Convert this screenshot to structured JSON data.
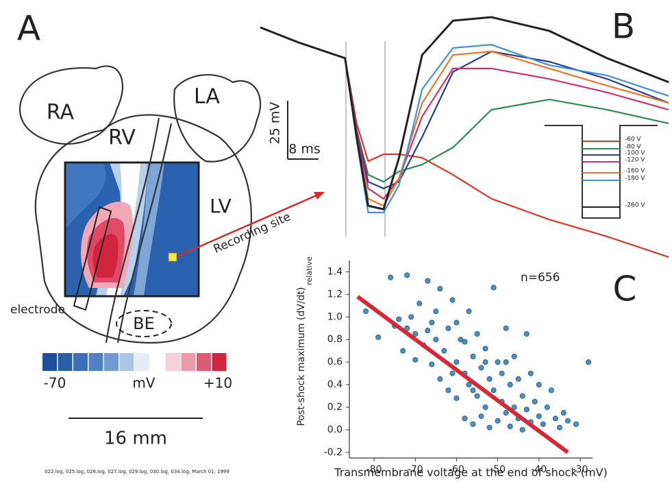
{
  "panel_labels": [
    "A",
    "B",
    "C"
  ],
  "panel_a": {
    "regions": [
      "RA",
      "RV",
      "LA",
      "LV",
      "BE"
    ],
    "electrode_label": "electrode",
    "recording_label": "Recording site",
    "colorbar": {
      "colors": [
        "#1d4f9e",
        "#2a5ea9",
        "#3a6fb7",
        "#4f82c4",
        "#6f9bd1",
        "#a9c6e6",
        "#e4edf7",
        "#ffffff",
        "#f5d0d8",
        "#ec9aab",
        "#de5a74",
        "#d1253f"
      ],
      "min_label": "-70",
      "unit": "mV",
      "max_label": "+10"
    },
    "scale_label": "16 mm",
    "footer": "022.log, 025.log, 026.log, 027.log, 029.log, 030.log, 034.log, March 01, 1999"
  },
  "chart_data": [
    {
      "type": "line",
      "x": [
        0,
        10,
        22,
        25,
        28,
        32,
        36,
        42,
        50,
        60,
        75,
        90,
        106
      ],
      "series": [
        {
          "name": "-60 V",
          "color": "#e03424",
          "values": [
            0,
            -6.5,
            -13.2,
            -41.2,
            -57.4,
            -54.4,
            -54.4,
            -55.9,
            -63.2,
            -73.5,
            -82.4,
            -89.7,
            -98.5
          ]
        },
        {
          "name": "-80 V",
          "color": "#2a8a50",
          "values": [
            0,
            -6.5,
            -13.2,
            -44,
            -63.2,
            -66.2,
            -61.8,
            -58.8,
            -51.5,
            -35.3,
            -30.9,
            -35.3,
            -41.2
          ]
        },
        {
          "name": "-100 V",
          "color": "#2c3c8c",
          "values": [
            0,
            -6.5,
            -13.2,
            -44,
            -66.2,
            -69.1,
            -66.2,
            -47,
            -19.1,
            -10.3,
            -14.7,
            -22.1,
            -32.4
          ]
        },
        {
          "name": "-120 V",
          "color": "#d2306c",
          "values": [
            0,
            -6.5,
            -13.2,
            -45,
            -69.1,
            -73.5,
            -64.7,
            -38.2,
            -17.6,
            -17.6,
            -22.1,
            -27.9,
            -35.3
          ]
        },
        {
          "name": "-160 V",
          "color": "#f07424",
          "values": [
            0,
            -6.5,
            -13.2,
            -47,
            -73.5,
            -76.5,
            -64.7,
            -32.4,
            -11.8,
            -10.3,
            -17.6,
            -25,
            -32.4
          ]
        },
        {
          "name": "-180 V",
          "color": "#3c92da",
          "values": [
            0,
            -6.5,
            -13.2,
            -48.5,
            -79.4,
            -79.4,
            -67.6,
            -26.5,
            -8.8,
            -7.4,
            -16.2,
            -20.6,
            -29.4
          ]
        },
        {
          "name": "-260 V",
          "color": "#222222",
          "values": [
            0,
            -6.5,
            -13.2,
            -47,
            -76.5,
            -78,
            -55.9,
            -11.8,
            2.9,
            4.4,
            -1.5,
            -13.2,
            -23.5
          ]
        }
      ],
      "scale_bars": {
        "voltage": {
          "value": 25,
          "label": "25 mV"
        },
        "time": {
          "value": 8,
          "label": "8 ms"
        }
      }
    },
    {
      "type": "scatter",
      "xlabel": "Transmembrane voltage at the end of shock (mV)",
      "ylabel": "Post-shock maximum (dV/dt)",
      "ylabel_subscript": "relative",
      "annotation": "n=656",
      "color": "#4a90c0",
      "x": [
        -82,
        -79,
        -76,
        -75,
        -74,
        -73,
        -72,
        -71,
        -70,
        -70,
        -69,
        -68,
        -67,
        -66,
        -66,
        -65,
        -64,
        -64,
        -63,
        -62,
        -62,
        -61,
        -60,
        -60,
        -59,
        -58,
        -58,
        -57,
        -57,
        -56,
        -56,
        -55,
        -55,
        -54,
        -54,
        -53,
        -53,
        -52,
        -52,
        -51,
        -51,
        -50,
        -50,
        -49,
        -49,
        -48,
        -48,
        -47,
        -47,
        -46,
        -46,
        -45,
        -45,
        -44,
        -44,
        -43,
        -43,
        -42,
        -42,
        -41,
        -40,
        -40,
        -39,
        -38,
        -37,
        -36,
        -35,
        -34,
        -33,
        -31,
        -28,
        -60,
        -65,
        -58,
        -53,
        -61,
        -67,
        -72,
        -56,
        -48
      ],
      "values": [
        1.05,
        0.82,
        1.35,
        0.92,
        0.98,
        0.7,
        1.37,
        1.0,
        0.85,
        0.62,
        1.12,
        0.75,
        1.32,
        0.95,
        0.58,
        0.8,
        1.25,
        0.45,
        0.7,
        0.9,
        0.35,
        1.15,
        0.6,
        0.28,
        0.8,
        0.5,
        0.1,
        1.05,
        0.4,
        0.65,
        0.05,
        0.3,
        0.85,
        0.55,
        0.12,
        0.2,
        0.72,
        0.45,
        0.02,
        1.26,
        0.35,
        0.6,
        0.08,
        0.25,
        0.5,
        0.15,
        0.9,
        0.4,
        0.03,
        0.65,
        0.2,
        0.1,
        0.45,
        0.3,
        0.0,
        0.85,
        0.18,
        0.5,
        0.07,
        0.25,
        0.12,
        0.4,
        0.05,
        0.2,
        0.35,
        0.1,
        0.02,
        0.15,
        0.08,
        0.05,
        0.6,
        0.95,
        1.05,
        0.78,
        0.6,
        0.5,
        0.88,
        0.9,
        0.35,
        0.6
      ],
      "fit": {
        "x": [
          -84,
          -33
        ],
        "values": [
          1.18,
          -0.2
        ],
        "color": "#d42a36"
      },
      "xlim": [
        -86,
        -27
      ],
      "ylim": [
        -0.25,
        1.5
      ],
      "xticks": [
        -80,
        -70,
        -60,
        -50,
        -40,
        -30
      ],
      "yticks": [
        -0.2,
        {
          "value": 0,
          "label": "0.0"
        },
        0.2,
        0.4,
        0.6,
        0.8,
        {
          "value": 1,
          "label": "1.0"
        },
        1.2,
        1.4
      ]
    }
  ]
}
